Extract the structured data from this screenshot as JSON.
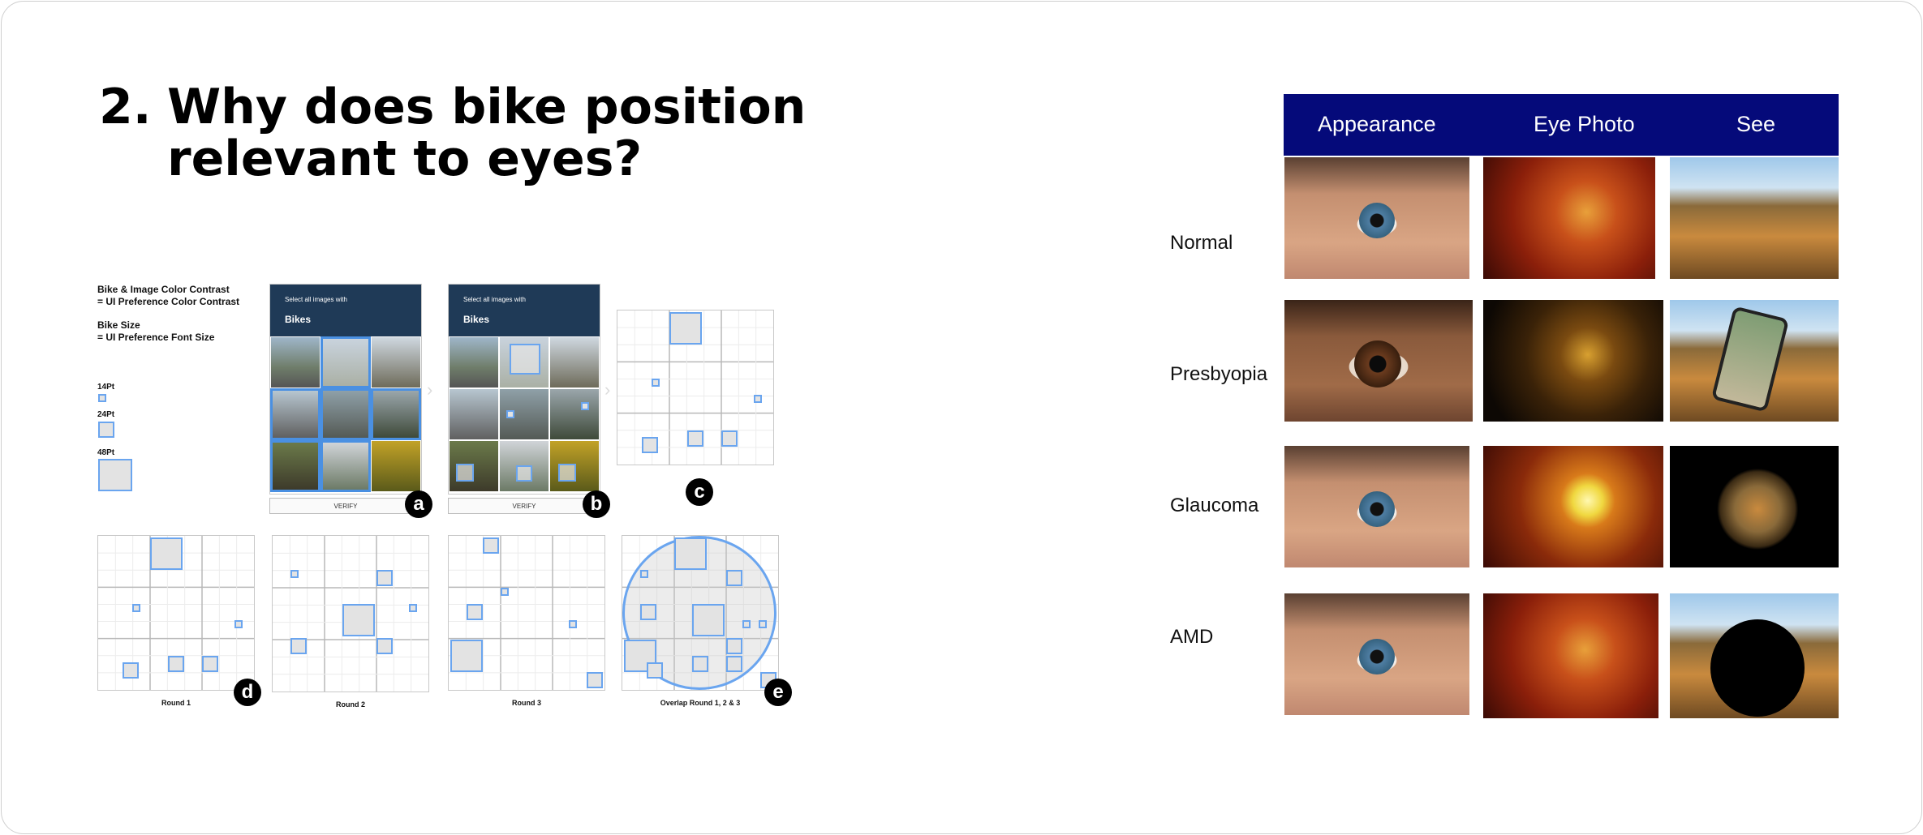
{
  "slide": {
    "title_number": "2.",
    "title_line1": "Why does bike position",
    "title_line2": "relevant to eyes?"
  },
  "figure": {
    "legend_line1": "Bike & Image Color Contrast",
    "legend_line2": "= UI Preference Color Contrast",
    "legend_line3": "Bike Size",
    "legend_line4": "= UI Preference Font Size",
    "size_14": "14Pt",
    "size_24": "24Pt",
    "size_48": "48Pt",
    "captcha_prompt": "Select all images with",
    "captcha_object": "Bikes",
    "verify_label": "VERIFY",
    "badge_a": "a",
    "badge_b": "b",
    "badge_c": "c",
    "badge_d": "d",
    "badge_e": "e",
    "round1": "Round 1",
    "round2": "Round 2",
    "round3": "Round 3",
    "overlap": "Overlap Round 1, 2 & 3"
  },
  "table": {
    "header_color": "#050a7a",
    "columns": [
      "Appearance",
      "Eye Photo",
      "See"
    ],
    "rows": [
      "Normal",
      "Presbyopia",
      "Glaucoma",
      "AMD"
    ]
  }
}
